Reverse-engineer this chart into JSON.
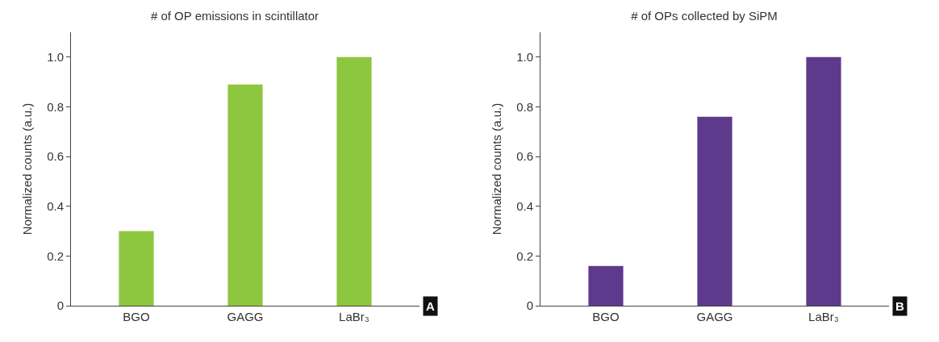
{
  "chart_data": [
    {
      "type": "bar",
      "title": "# of OP emissions in scintillator",
      "ylabel": "Normalized counts (a.u.)",
      "categories": [
        "BGO",
        "GAGG",
        "LaBr₃"
      ],
      "values": [
        0.3,
        0.89,
        1.0
      ],
      "color": "#8dc63f",
      "ylim": [
        0,
        1.1
      ],
      "yticks": [
        0,
        0.2,
        0.4,
        0.6,
        0.8,
        {
          "value": 1,
          "label": "1.0"
        }
      ],
      "grid": false,
      "legend": false,
      "annotations": [
        "A"
      ]
    },
    {
      "type": "bar",
      "title": "# of OPs collected by SiPM",
      "ylabel": "Normalized counts (a.u.)",
      "categories": [
        "BGO",
        "GAGG",
        "LaBr₃"
      ],
      "values": [
        0.16,
        0.76,
        1.0
      ],
      "color": "#5e3a8c",
      "ylim": [
        0,
        1.1
      ],
      "yticks": [
        0,
        0.2,
        0.4,
        0.6,
        0.8,
        {
          "value": 1,
          "label": "1.0"
        }
      ],
      "grid": false,
      "legend": false,
      "annotations": [
        "B"
      ]
    }
  ]
}
